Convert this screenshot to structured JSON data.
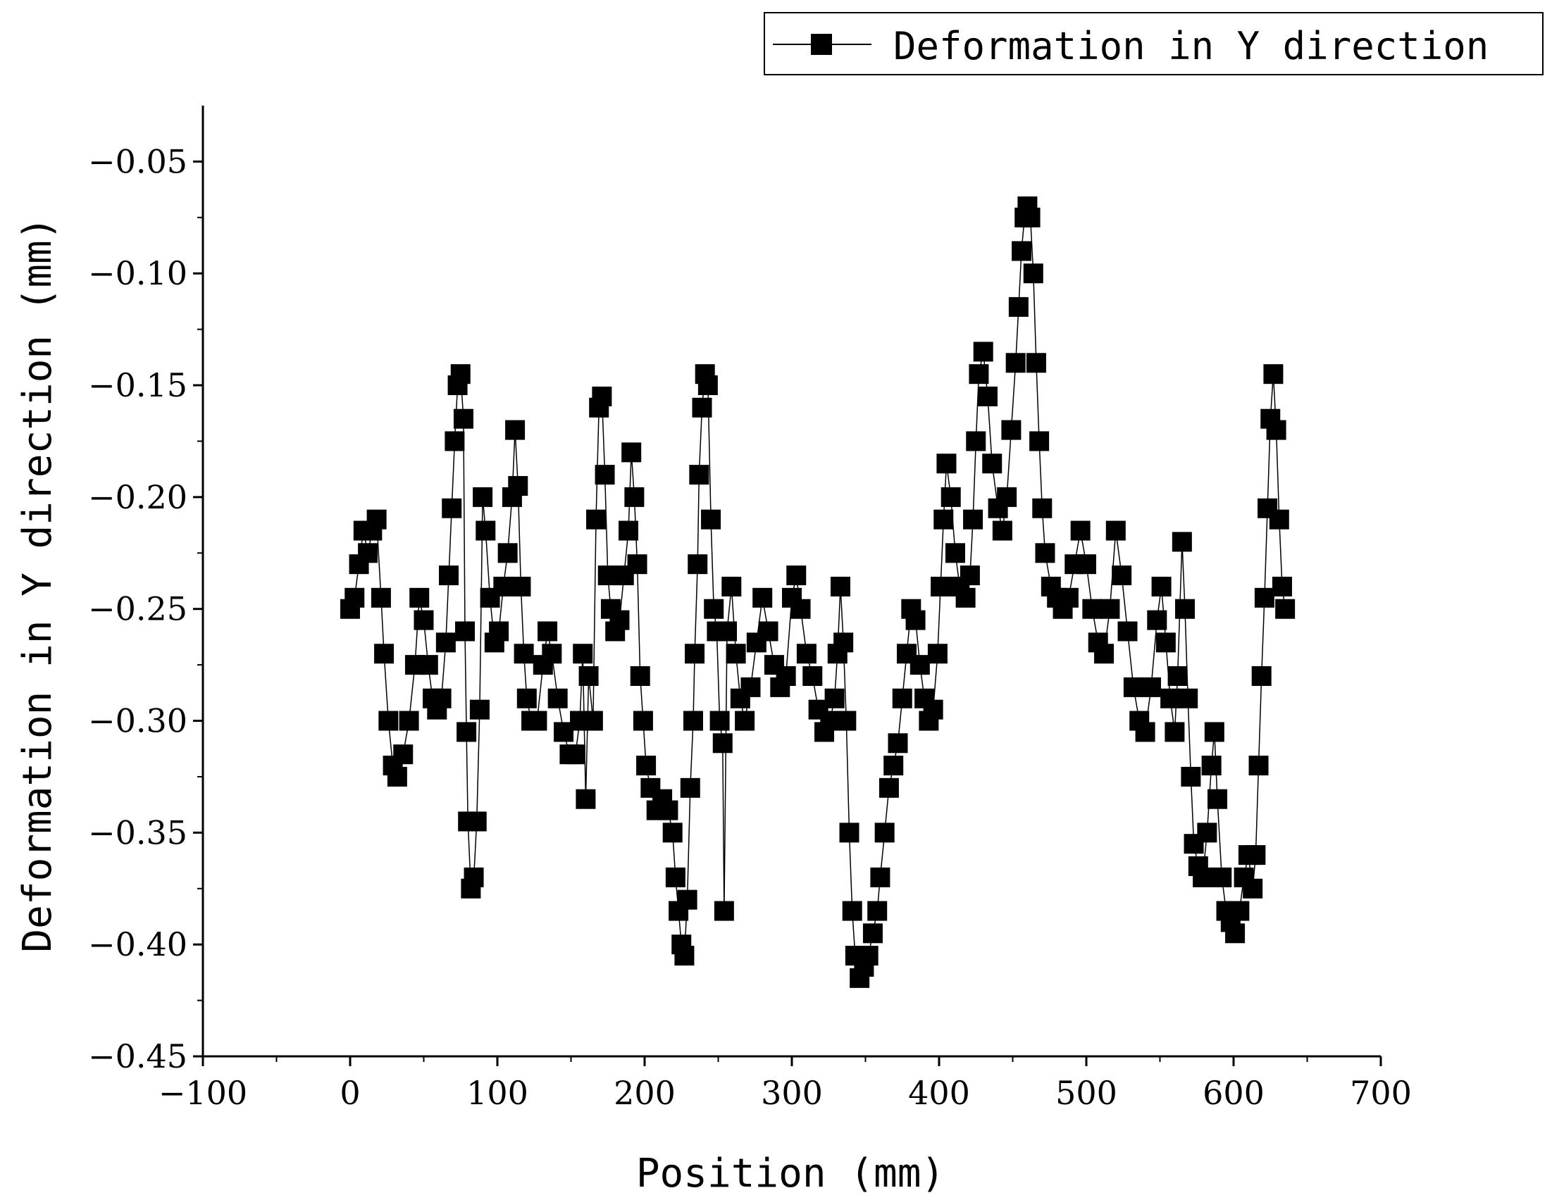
{
  "chart_data": {
    "type": "line",
    "xlabel": "Position (mm)",
    "ylabel": "Deformation in Y direction (mm)",
    "xlim": [
      -100,
      700
    ],
    "ylim": [
      -0.45,
      -0.025
    ],
    "x_ticks": [
      -100,
      0,
      100,
      200,
      300,
      400,
      500,
      600,
      700
    ],
    "x_tick_labels": [
      "−100",
      "0",
      "100",
      "200",
      "300",
      "400",
      "500",
      "600",
      "700"
    ],
    "y_ticks": [
      -0.45,
      -0.4,
      -0.35,
      -0.3,
      -0.25,
      -0.2,
      -0.15,
      -0.1,
      -0.05
    ],
    "y_tick_labels": [
      "−0.45",
      "−0.40",
      "−0.35",
      "−0.30",
      "−0.25",
      "−0.20",
      "−0.15",
      "−0.10",
      "−0.05"
    ],
    "grid": false,
    "legend_position": "top-right",
    "marker": "square",
    "series": [
      {
        "name": "Deformation in Y direction",
        "color": "#000000",
        "points": [
          [
            0,
            -0.25
          ],
          [
            3,
            -0.245
          ],
          [
            6,
            -0.23
          ],
          [
            9,
            -0.215
          ],
          [
            12,
            -0.225
          ],
          [
            15,
            -0.215
          ],
          [
            18,
            -0.21
          ],
          [
            21,
            -0.245
          ],
          [
            23,
            -0.27
          ],
          [
            26,
            -0.3
          ],
          [
            29,
            -0.32
          ],
          [
            32,
            -0.325
          ],
          [
            36,
            -0.315
          ],
          [
            40,
            -0.3
          ],
          [
            44,
            -0.275
          ],
          [
            47,
            -0.245
          ],
          [
            50,
            -0.255
          ],
          [
            53,
            -0.275
          ],
          [
            56,
            -0.29
          ],
          [
            59,
            -0.295
          ],
          [
            62,
            -0.29
          ],
          [
            65,
            -0.265
          ],
          [
            67,
            -0.235
          ],
          [
            69,
            -0.205
          ],
          [
            71,
            -0.175
          ],
          [
            73,
            -0.15
          ],
          [
            75,
            -0.145
          ],
          [
            77,
            -0.165
          ],
          [
            78,
            -0.26
          ],
          [
            79,
            -0.305
          ],
          [
            80,
            -0.345
          ],
          [
            82,
            -0.375
          ],
          [
            84,
            -0.37
          ],
          [
            86,
            -0.345
          ],
          [
            88,
            -0.295
          ],
          [
            90,
            -0.2
          ],
          [
            92,
            -0.215
          ],
          [
            95,
            -0.245
          ],
          [
            98,
            -0.265
          ],
          [
            101,
            -0.26
          ],
          [
            104,
            -0.24
          ],
          [
            107,
            -0.225
          ],
          [
            110,
            -0.2
          ],
          [
            112,
            -0.17
          ],
          [
            114,
            -0.195
          ],
          [
            116,
            -0.24
          ],
          [
            118,
            -0.27
          ],
          [
            120,
            -0.29
          ],
          [
            123,
            -0.3
          ],
          [
            127,
            -0.3
          ],
          [
            131,
            -0.275
          ],
          [
            134,
            -0.26
          ],
          [
            137,
            -0.27
          ],
          [
            141,
            -0.29
          ],
          [
            145,
            -0.305
          ],
          [
            149,
            -0.315
          ],
          [
            153,
            -0.315
          ],
          [
            156,
            -0.3
          ],
          [
            158,
            -0.27
          ],
          [
            160,
            -0.335
          ],
          [
            162,
            -0.28
          ],
          [
            165,
            -0.3
          ],
          [
            167,
            -0.21
          ],
          [
            169,
            -0.16
          ],
          [
            171,
            -0.155
          ],
          [
            173,
            -0.19
          ],
          [
            175,
            -0.235
          ],
          [
            177,
            -0.25
          ],
          [
            180,
            -0.26
          ],
          [
            183,
            -0.255
          ],
          [
            186,
            -0.235
          ],
          [
            189,
            -0.215
          ],
          [
            191,
            -0.18
          ],
          [
            193,
            -0.2
          ],
          [
            195,
            -0.23
          ],
          [
            197,
            -0.28
          ],
          [
            199,
            -0.3
          ],
          [
            201,
            -0.32
          ],
          [
            204,
            -0.33
          ],
          [
            208,
            -0.34
          ],
          [
            212,
            -0.335
          ],
          [
            216,
            -0.34
          ],
          [
            219,
            -0.35
          ],
          [
            221,
            -0.37
          ],
          [
            223,
            -0.385
          ],
          [
            225,
            -0.4
          ],
          [
            227,
            -0.405
          ],
          [
            229,
            -0.38
          ],
          [
            231,
            -0.33
          ],
          [
            233,
            -0.3
          ],
          [
            234,
            -0.27
          ],
          [
            236,
            -0.23
          ],
          [
            237,
            -0.19
          ],
          [
            239,
            -0.16
          ],
          [
            241,
            -0.145
          ],
          [
            243,
            -0.15
          ],
          [
            245,
            -0.21
          ],
          [
            247,
            -0.25
          ],
          [
            249,
            -0.26
          ],
          [
            251,
            -0.3
          ],
          [
            253,
            -0.31
          ],
          [
            254,
            -0.385
          ],
          [
            256,
            -0.26
          ],
          [
            259,
            -0.24
          ],
          [
            262,
            -0.27
          ],
          [
            265,
            -0.29
          ],
          [
            268,
            -0.3
          ],
          [
            272,
            -0.285
          ],
          [
            276,
            -0.265
          ],
          [
            280,
            -0.245
          ],
          [
            284,
            -0.26
          ],
          [
            288,
            -0.275
          ],
          [
            292,
            -0.285
          ],
          [
            296,
            -0.28
          ],
          [
            300,
            -0.245
          ],
          [
            303,
            -0.235
          ],
          [
            306,
            -0.25
          ],
          [
            310,
            -0.27
          ],
          [
            314,
            -0.28
          ],
          [
            318,
            -0.295
          ],
          [
            322,
            -0.305
          ],
          [
            326,
            -0.3
          ],
          [
            329,
            -0.29
          ],
          [
            331,
            -0.27
          ],
          [
            333,
            -0.24
          ],
          [
            335,
            -0.265
          ],
          [
            337,
            -0.3
          ],
          [
            339,
            -0.35
          ],
          [
            341,
            -0.385
          ],
          [
            343,
            -0.405
          ],
          [
            346,
            -0.415
          ],
          [
            349,
            -0.41
          ],
          [
            352,
            -0.405
          ],
          [
            355,
            -0.395
          ],
          [
            358,
            -0.385
          ],
          [
            360,
            -0.37
          ],
          [
            363,
            -0.35
          ],
          [
            366,
            -0.33
          ],
          [
            369,
            -0.32
          ],
          [
            372,
            -0.31
          ],
          [
            375,
            -0.29
          ],
          [
            378,
            -0.27
          ],
          [
            381,
            -0.25
          ],
          [
            384,
            -0.255
          ],
          [
            387,
            -0.275
          ],
          [
            390,
            -0.29
          ],
          [
            393,
            -0.3
          ],
          [
            396,
            -0.295
          ],
          [
            399,
            -0.27
          ],
          [
            401,
            -0.24
          ],
          [
            403,
            -0.21
          ],
          [
            405,
            -0.185
          ],
          [
            408,
            -0.2
          ],
          [
            411,
            -0.225
          ],
          [
            414,
            -0.24
          ],
          [
            418,
            -0.245
          ],
          [
            421,
            -0.235
          ],
          [
            423,
            -0.21
          ],
          [
            425,
            -0.175
          ],
          [
            427,
            -0.145
          ],
          [
            430,
            -0.135
          ],
          [
            433,
            -0.155
          ],
          [
            436,
            -0.185
          ],
          [
            440,
            -0.205
          ],
          [
            443,
            -0.215
          ],
          [
            446,
            -0.2
          ],
          [
            449,
            -0.17
          ],
          [
            452,
            -0.14
          ],
          [
            454,
            -0.115
          ],
          [
            456,
            -0.09
          ],
          [
            458,
            -0.075
          ],
          [
            460,
            -0.07
          ],
          [
            462,
            -0.075
          ],
          [
            464,
            -0.1
          ],
          [
            466,
            -0.14
          ],
          [
            468,
            -0.175
          ],
          [
            470,
            -0.205
          ],
          [
            472,
            -0.225
          ],
          [
            476,
            -0.24
          ],
          [
            480,
            -0.245
          ],
          [
            484,
            -0.25
          ],
          [
            488,
            -0.245
          ],
          [
            492,
            -0.23
          ],
          [
            496,
            -0.215
          ],
          [
            500,
            -0.23
          ],
          [
            504,
            -0.25
          ],
          [
            508,
            -0.265
          ],
          [
            512,
            -0.27
          ],
          [
            516,
            -0.25
          ],
          [
            520,
            -0.215
          ],
          [
            524,
            -0.235
          ],
          [
            528,
            -0.26
          ],
          [
            532,
            -0.285
          ],
          [
            536,
            -0.3
          ],
          [
            540,
            -0.305
          ],
          [
            544,
            -0.285
          ],
          [
            548,
            -0.255
          ],
          [
            551,
            -0.24
          ],
          [
            554,
            -0.265
          ],
          [
            557,
            -0.29
          ],
          [
            560,
            -0.305
          ],
          [
            562,
            -0.28
          ],
          [
            565,
            -0.22
          ],
          [
            567,
            -0.25
          ],
          [
            569,
            -0.29
          ],
          [
            571,
            -0.325
          ],
          [
            573,
            -0.355
          ],
          [
            576,
            -0.365
          ],
          [
            579,
            -0.37
          ],
          [
            582,
            -0.35
          ],
          [
            585,
            -0.32
          ],
          [
            587,
            -0.305
          ],
          [
            589,
            -0.335
          ],
          [
            592,
            -0.37
          ],
          [
            595,
            -0.385
          ],
          [
            598,
            -0.39
          ],
          [
            601,
            -0.395
          ],
          [
            604,
            -0.385
          ],
          [
            607,
            -0.37
          ],
          [
            610,
            -0.36
          ],
          [
            613,
            -0.375
          ],
          [
            615,
            -0.36
          ],
          [
            617,
            -0.32
          ],
          [
            619,
            -0.28
          ],
          [
            621,
            -0.245
          ],
          [
            623,
            -0.205
          ],
          [
            625,
            -0.165
          ],
          [
            627,
            -0.145
          ],
          [
            629,
            -0.17
          ],
          [
            631,
            -0.21
          ],
          [
            633,
            -0.24
          ],
          [
            635,
            -0.25
          ]
        ]
      }
    ]
  }
}
